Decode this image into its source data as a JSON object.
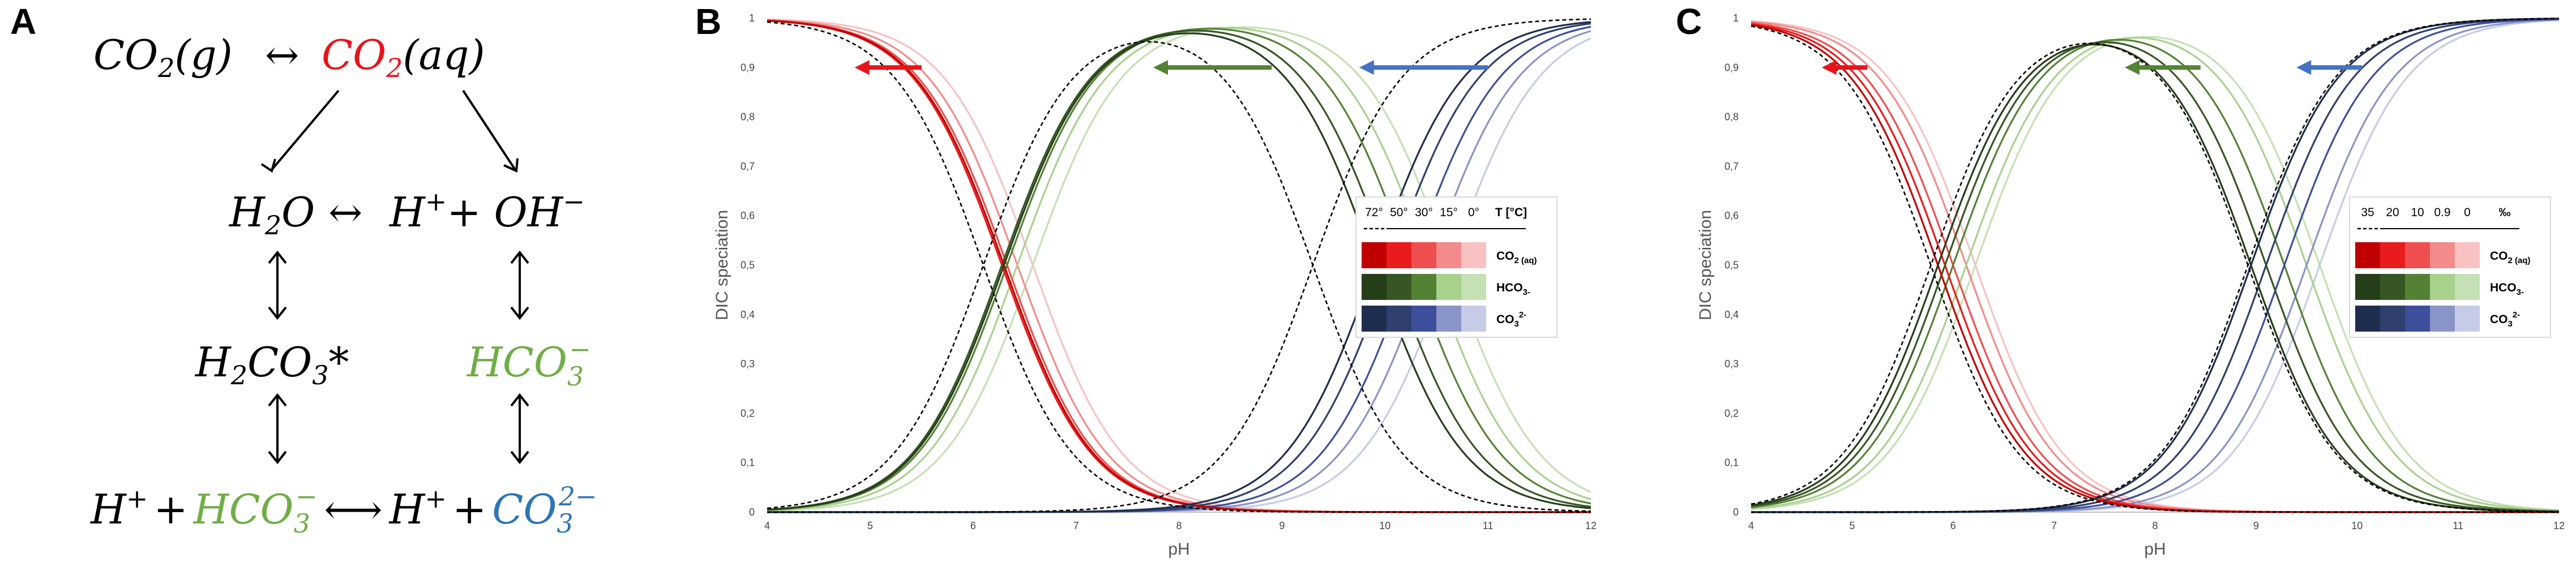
{
  "panels": {
    "a": "A",
    "b": "B",
    "c": "C"
  },
  "scheme": {
    "row1": {
      "left": "CO",
      "left_sub": "2",
      "left_tail": "(g)",
      "arrow": "↔",
      "right": "CO",
      "right_sub": "2",
      "right_tail": "(aq)"
    },
    "row2": {
      "h2o": "H",
      "h2o_sub": "2",
      "h2o_tail": "O",
      "arrow": "↔",
      "hplus": "H",
      "hplus_sup": "+",
      "oh": "+ OH",
      "oh_sup": "−"
    },
    "row3": {
      "h2co3": "H",
      "h2co3_sub": "2",
      "h2co3_mid": "CO",
      "h2co3_sub2": "3",
      "h2co3_tail": "*",
      "hco3": "HCO",
      "hco3_sub": "3",
      "hco3_sup": "−"
    },
    "row4": {
      "hplus": "H",
      "hplus_sup": "+",
      "plus": "+",
      "hco3": "HCO",
      "hco3_sub": "3",
      "hco3_sup": "−",
      "arrow": "⟷",
      "hplus2": "H",
      "hplus2_sup": "+",
      "plus2": "+",
      "co3": "CO",
      "co3_sub": "3",
      "co3_sup": "2−"
    },
    "colors": {
      "co2aq": "#e8141c",
      "hco3": "#70ad47",
      "co3": "#2e75b6",
      "black": "#000000"
    }
  },
  "chart_data": [
    {
      "id": "B",
      "type": "line",
      "xlabel": "pH",
      "ylabel": "DIC speciation",
      "xlim": [
        4,
        12
      ],
      "ylim": [
        0,
        1
      ],
      "xticks": [
        "4",
        "5",
        "6",
        "7",
        "8",
        "9",
        "10",
        "11",
        "12"
      ],
      "yticks": [
        "0",
        "0,1",
        "0,2",
        "0,3",
        "0,4",
        "0,5",
        "0,6",
        "0,7",
        "0,8",
        "0,9",
        "1"
      ],
      "grid": false,
      "legend": {
        "position": "right-middle",
        "header": [
          "72°",
          "50°",
          "30°",
          "15°",
          "0°"
        ],
        "unit": "T [°C]",
        "rows": [
          "CO2 (aq)",
          "HCO3-",
          "CO3 2-"
        ]
      },
      "conditions": [
        {
          "label": "72°",
          "pK1": 6.3,
          "pK2": 9.9
        },
        {
          "label": "50°",
          "pK1": 6.28,
          "pK2": 10.05
        },
        {
          "label": "30°",
          "pK1": 6.33,
          "pK2": 10.25
        },
        {
          "label": "15°",
          "pK1": 6.43,
          "pK2": 10.43
        },
        {
          "label": "0°",
          "pK1": 6.58,
          "pK2": 10.63
        }
      ],
      "dashed_reference": {
        "pK1": 6.1,
        "pK2": 9.3
      },
      "series_colors": {
        "co2": [
          "#c00000",
          "#e81c1c",
          "#ef4f4f",
          "#f48b8b",
          "#f8c2c2"
        ],
        "hco3": [
          "#263d1a",
          "#375623",
          "#548235",
          "#a9d18e",
          "#c5e0b4"
        ],
        "co3": [
          "#1f2d4e",
          "#2f3f6e",
          "#3d4f9b",
          "#8a94c7",
          "#c6cce6"
        ]
      },
      "arrows": [
        {
          "series": "CO2 (aq)",
          "from_ph": 5.5,
          "to_ph": 4.85,
          "y": 0.9,
          "color": "#e8141c"
        },
        {
          "series": "HCO3-",
          "from_ph": 8.9,
          "to_ph": 7.75,
          "y": 0.9,
          "color": "#548235"
        },
        {
          "series": "CO3 2-",
          "from_ph": 11.0,
          "to_ph": 9.75,
          "y": 0.9,
          "color": "#4472c4"
        }
      ]
    },
    {
      "id": "C",
      "type": "line",
      "xlabel": "pH",
      "ylabel": "DIC speciation",
      "xlim": [
        4,
        12
      ],
      "ylim": [
        0,
        1
      ],
      "xticks": [
        "4",
        "5",
        "6",
        "7",
        "8",
        "9",
        "10",
        "11",
        "12"
      ],
      "yticks": [
        "0",
        "0,1",
        "0,2",
        "0,3",
        "0,4",
        "0,5",
        "0,6",
        "0,7",
        "0,8",
        "0,9",
        "1"
      ],
      "grid": false,
      "legend": {
        "position": "right-middle",
        "header": [
          "35",
          "20",
          "10",
          "0.9",
          "0"
        ],
        "unit": "‰",
        "rows": [
          "CO2 (aq)",
          "HCO3-",
          "CO3 2-"
        ]
      },
      "conditions": [
        {
          "label": "35",
          "pK1": 5.85,
          "pK2": 8.95
        },
        {
          "label": "20",
          "pK1": 5.92,
          "pK2": 9.1
        },
        {
          "label": "10",
          "pK1": 6.0,
          "pK2": 9.28
        },
        {
          "label": "0.9",
          "pK1": 6.13,
          "pK2": 9.5
        },
        {
          "label": "0",
          "pK1": 6.22,
          "pK2": 9.63
        }
      ],
      "dashed_reference": {
        "pK1": 5.78,
        "pK2": 8.92
      },
      "series_colors": {
        "co2": [
          "#c00000",
          "#e81c1c",
          "#ef4f4f",
          "#f48b8b",
          "#f8c2c2"
        ],
        "hco3": [
          "#263d1a",
          "#375623",
          "#548235",
          "#a9d18e",
          "#c5e0b4"
        ],
        "co3": [
          "#1f2d4e",
          "#2f3f6e",
          "#3d4f9b",
          "#8a94c7",
          "#c6cce6"
        ]
      },
      "arrows": [
        {
          "series": "CO2 (aq)",
          "from_ph": 5.15,
          "to_ph": 4.7,
          "y": 0.9,
          "color": "#e8141c"
        },
        {
          "series": "HCO3-",
          "from_ph": 8.45,
          "to_ph": 7.7,
          "y": 0.9,
          "color": "#548235"
        },
        {
          "series": "CO3 2-",
          "from_ph": 10.05,
          "to_ph": 9.4,
          "y": 0.9,
          "color": "#4472c4"
        }
      ]
    }
  ]
}
